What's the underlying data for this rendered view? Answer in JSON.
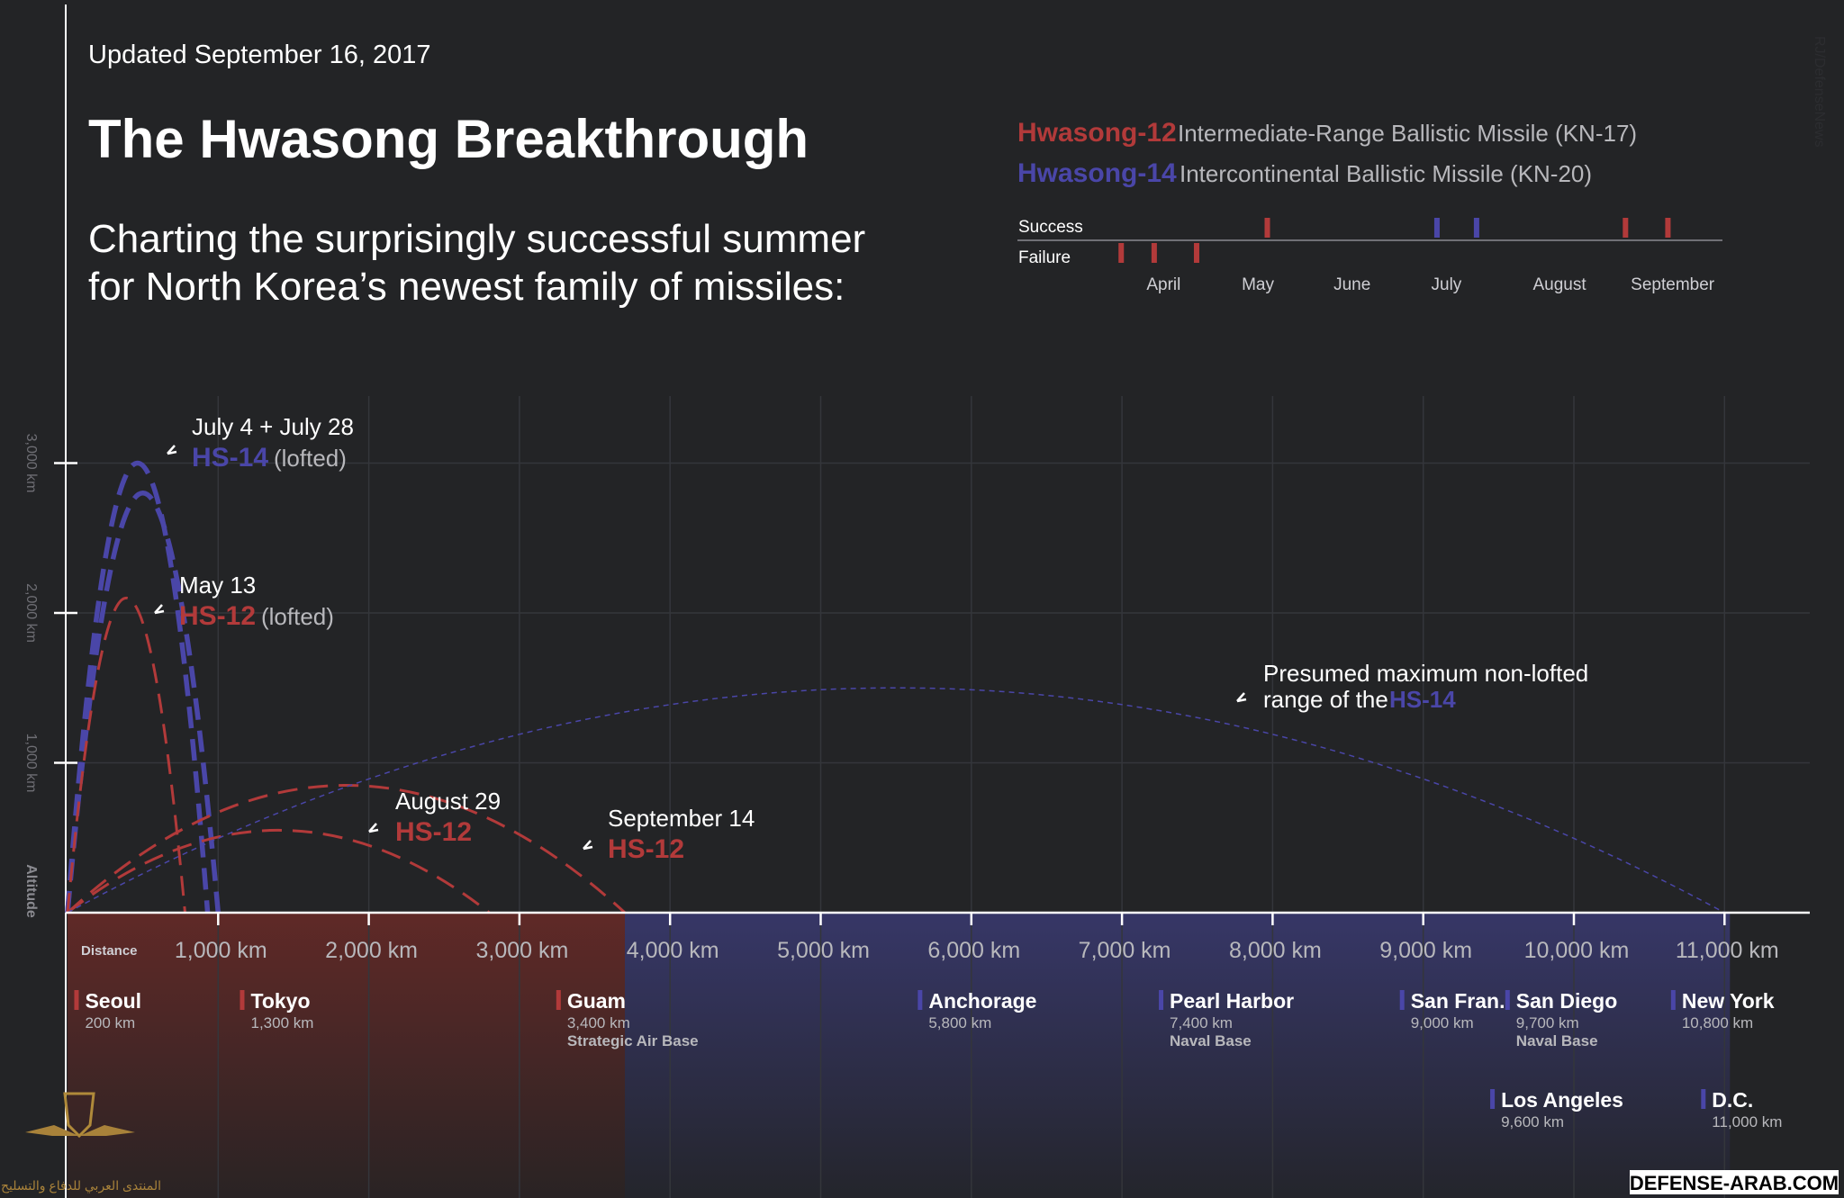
{
  "header": {
    "updated": "Updated September 16, 2017",
    "title": "The Hwasong Breakthrough",
    "subtitle_line1": "Charting the surprisingly successful summer",
    "subtitle_line2": "for North Korea’s newest family of missiles:"
  },
  "legend": {
    "hs12_name": "Hwasong-12",
    "hs12_desc": "Intermediate-Range Ballistic Missile (KN-17)",
    "hs14_name": "Hwasong-14",
    "hs14_desc": "Intercontinental Ballistic Missile (KN-20)"
  },
  "colors": {
    "background": "#232426",
    "hs12": "#b23a3a",
    "hs14": "#4a46a8",
    "grid": "#34363b",
    "axis": "#ffffff",
    "muted": "#9a9aa0"
  },
  "timeline": {
    "success_label": "Success",
    "failure_label": "Failure",
    "months": [
      "April",
      "May",
      "June",
      "July",
      "August",
      "September"
    ],
    "month_positions": [
      4.6,
      5.6,
      6.6,
      7.6,
      8.8,
      10.0
    ],
    "range": [
      4.1,
      10.5
    ],
    "tests": [
      {
        "missile": "HS-12",
        "result": "failure",
        "month": 4.15
      },
      {
        "missile": "HS-12",
        "result": "failure",
        "month": 4.5
      },
      {
        "missile": "HS-12",
        "result": "failure",
        "month": 4.95
      },
      {
        "missile": "HS-12",
        "result": "success",
        "month": 5.7
      },
      {
        "missile": "HS-14",
        "result": "success",
        "month": 7.5
      },
      {
        "missile": "HS-14",
        "result": "success",
        "month": 7.92
      },
      {
        "missile": "HS-12",
        "result": "success",
        "month": 9.5
      },
      {
        "missile": "HS-12",
        "result": "success",
        "month": 9.95
      }
    ]
  },
  "chart_data": {
    "type": "line",
    "xlabel": "Distance",
    "ylabel": "Altitude",
    "xlim": [
      0,
      11500
    ],
    "ylim": [
      0,
      3600
    ],
    "x_ticks": [
      1000,
      2000,
      3000,
      4000,
      5000,
      6000,
      7000,
      8000,
      9000,
      10000,
      11000
    ],
    "x_tick_labels": [
      "1,000 km",
      "2,000 km",
      "3,000 km",
      "4,000 km",
      "5,000 km",
      "6,000 km",
      "7,000 km",
      "8,000 km",
      "9,000 km",
      "10,000 km",
      "11,000 km"
    ],
    "y_ticks": [
      1000,
      2000,
      3000
    ],
    "y_tick_labels": [
      "1,000 km",
      "2,000 km",
      "3,000 km"
    ],
    "grid": true,
    "hs12_range_km": 3700,
    "hs14_range_km": 11000,
    "series": [
      {
        "missile": "HS-14",
        "range": 930,
        "apogee": 3000,
        "style": "dashed-thick"
      },
      {
        "missile": "HS-14",
        "range": 1000,
        "apogee": 2800,
        "style": "dashed-thick"
      },
      {
        "missile": "HS-12",
        "range": 780,
        "apogee": 2100,
        "style": "dashed"
      },
      {
        "missile": "HS-12",
        "range": 2800,
        "apogee": 550,
        "style": "dashed"
      },
      {
        "missile": "HS-12",
        "range": 3700,
        "apogee": 850,
        "style": "dashed"
      },
      {
        "missile": "HS-14",
        "range": 11000,
        "apogee": 1500,
        "style": "dotted-thin"
      }
    ],
    "annotations": [
      {
        "id": "a1",
        "line1": "July 4 + July 28",
        "missile": "HS-14",
        "suffix": "(lofted)"
      },
      {
        "id": "a2",
        "line1": "May 13",
        "missile": "HS-12",
        "suffix": "(lofted)"
      },
      {
        "id": "a3",
        "line1": "August 29",
        "missile": "HS-12",
        "suffix": ""
      },
      {
        "id": "a4",
        "line1": "September 14",
        "missile": "HS-12",
        "suffix": ""
      },
      {
        "id": "a5",
        "line1": "Presumed maximum non-lofted",
        "line2_prefix": "range of the",
        "missile": "HS-14"
      }
    ],
    "cities": [
      {
        "name": "Seoul",
        "dist_label": "200 km",
        "km": 200,
        "note": "",
        "missile": "HS-12",
        "row": 1
      },
      {
        "name": "Tokyo",
        "dist_label": "1,300 km",
        "km": 1300,
        "note": "",
        "missile": "HS-12",
        "row": 1
      },
      {
        "name": "Guam",
        "dist_label": "3,400 km",
        "km": 3400,
        "note": "Strategic Air Base",
        "missile": "HS-12",
        "row": 1
      },
      {
        "name": "Anchorage",
        "dist_label": "5,800 km",
        "km": 5800,
        "note": "",
        "missile": "HS-14",
        "row": 1
      },
      {
        "name": "Pearl Harbor",
        "dist_label": "7,400 km",
        "km": 7400,
        "note": "Naval Base",
        "missile": "HS-14",
        "row": 1
      },
      {
        "name": "San Fran.",
        "dist_label": "9,000 km",
        "km": 9000,
        "note": "",
        "missile": "HS-14",
        "row": 1
      },
      {
        "name": "San Diego",
        "dist_label": "9,700 km",
        "km": 9700,
        "note": "Naval Base",
        "missile": "HS-14",
        "row": 1
      },
      {
        "name": "New York",
        "dist_label": "10,800 km",
        "km": 10800,
        "note": "",
        "missile": "HS-14",
        "row": 1
      },
      {
        "name": "Los Angeles",
        "dist_label": "9,600 km",
        "km": 9600,
        "note": "",
        "missile": "HS-14",
        "row": 2
      },
      {
        "name": "D.C.",
        "dist_label": "11,000 km",
        "km": 11000,
        "note": "",
        "missile": "HS-14",
        "row": 2
      }
    ]
  },
  "watermark": {
    "site": "DEFENSE-ARAB.COM",
    "arabic": "المنتدى العربي للدفاع والتسليح",
    "credit": "RJ/DefenseNews"
  }
}
